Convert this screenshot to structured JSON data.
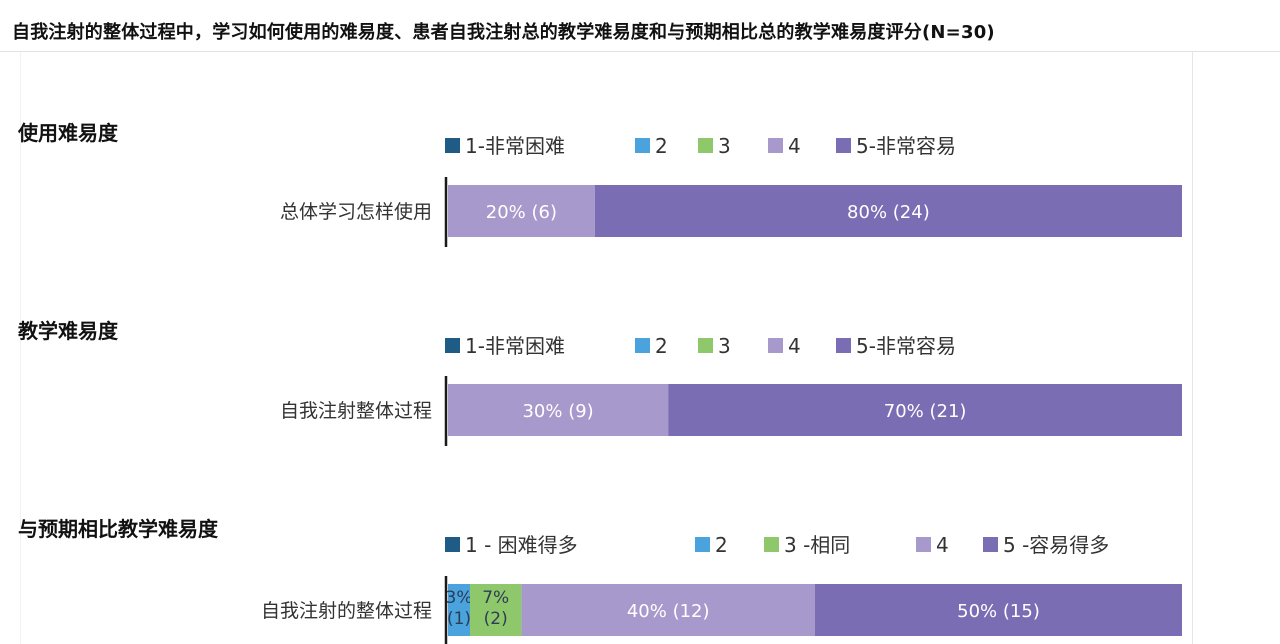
{
  "header": {
    "title": "自我注射的整体过程中，学习如何使用的难易度、患者自我注射总的教学难易度和与预期相比总的教学难易度评分(N=30)"
  },
  "colors": {
    "c1": "#1f5c85",
    "c2": "#4aa3dc",
    "c3": "#8fc86a",
    "c4": "#a899cc",
    "c5": "#7b6db4",
    "axis": "#1a1a1a"
  },
  "chart_data": [
    {
      "type": "bar",
      "orientation": "horizontal",
      "stacked": true,
      "title": "使用难易度",
      "categories": [
        "总体学习怎样使用"
      ],
      "series": [
        {
          "name": "1-非常困难",
          "values": [
            0
          ]
        },
        {
          "name": "2",
          "values": [
            0
          ]
        },
        {
          "name": "3",
          "values": [
            0
          ]
        },
        {
          "name": "4",
          "values": [
            20
          ]
        },
        {
          "name": "5-非常容易",
          "values": [
            80
          ]
        }
      ],
      "data_labels": [
        [
          "",
          "",
          "",
          "20% (6)",
          "80% (24)"
        ]
      ],
      "xlim": [
        0,
        100
      ],
      "legend_position": "top"
    },
    {
      "type": "bar",
      "orientation": "horizontal",
      "stacked": true,
      "title": "教学难易度",
      "categories": [
        "自我注射整体过程"
      ],
      "series": [
        {
          "name": "1-非常困难",
          "values": [
            0
          ]
        },
        {
          "name": "2",
          "values": [
            0
          ]
        },
        {
          "name": "3",
          "values": [
            0
          ]
        },
        {
          "name": "4",
          "values": [
            30
          ]
        },
        {
          "name": "5-非常容易",
          "values": [
            70
          ]
        }
      ],
      "data_labels": [
        [
          "",
          "",
          "",
          "30% (9)",
          "70% (21)"
        ]
      ],
      "xlim": [
        0,
        100
      ],
      "legend_position": "top"
    },
    {
      "type": "bar",
      "orientation": "horizontal",
      "stacked": true,
      "title": "与预期相比教学难易度",
      "categories": [
        "自我注射的整体过程"
      ],
      "series": [
        {
          "name": "1 - 困难得多",
          "values": [
            0
          ]
        },
        {
          "name": "2",
          "values": [
            3
          ]
        },
        {
          "name": "3 -相同",
          "values": [
            7
          ]
        },
        {
          "name": "4",
          "values": [
            40
          ]
        },
        {
          "name": "5 -容易得多",
          "values": [
            50
          ]
        }
      ],
      "data_labels": [
        [
          "",
          "3%\n(1)",
          "7%\n(2)",
          "40% (12)",
          "50% (15)"
        ]
      ],
      "xlim": [
        0,
        100
      ],
      "legend_position": "top"
    }
  ]
}
